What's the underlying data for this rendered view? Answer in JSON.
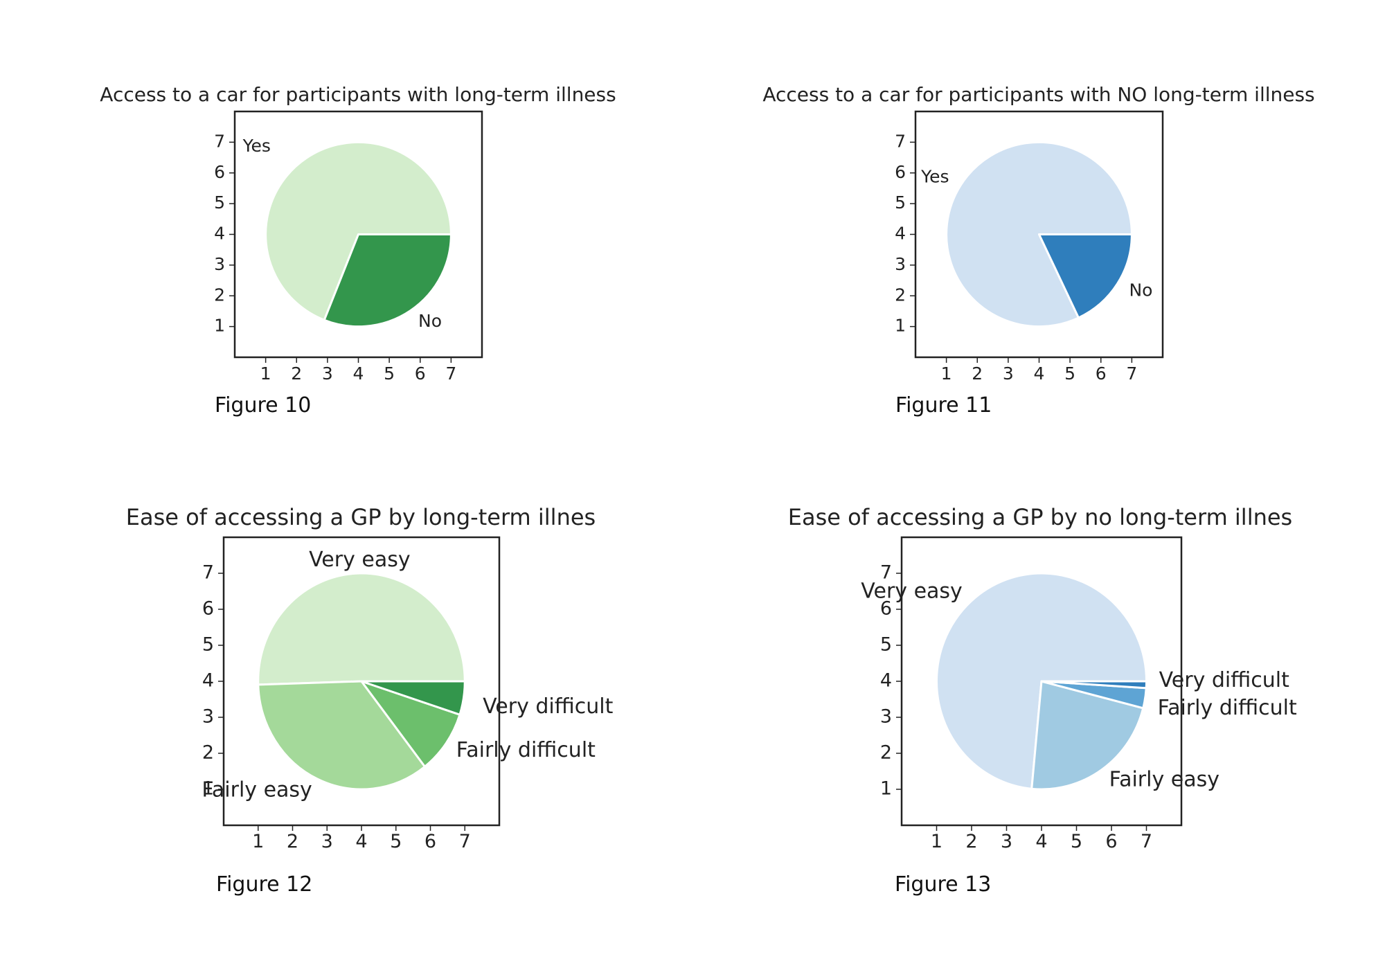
{
  "chart_data": [
    {
      "type": "pie",
      "title": "Access to a car for participants with long-term illness",
      "caption": "Figure 10",
      "ticks": [
        "1",
        "2",
        "3",
        "4",
        "5",
        "6",
        "7"
      ],
      "xlim": [
        0,
        8
      ],
      "ylim": [
        0,
        8
      ],
      "center": [
        4,
        4
      ],
      "radius": 3,
      "start_angle_deg": 0,
      "counterclock": true,
      "slices": [
        {
          "label": "Yes",
          "value": 69,
          "color": "#d3edcc"
        },
        {
          "label": "No",
          "value": 31,
          "color": "#33964c"
        }
      ]
    },
    {
      "type": "pie",
      "title": "Access to a car for participants with NO long-term illness",
      "caption": "Figure 11",
      "ticks": [
        "1",
        "2",
        "3",
        "4",
        "5",
        "6",
        "7"
      ],
      "xlim": [
        0,
        8
      ],
      "ylim": [
        0,
        8
      ],
      "center": [
        4,
        4
      ],
      "radius": 3,
      "start_angle_deg": 0,
      "counterclock": true,
      "slices": [
        {
          "label": "Yes",
          "value": 82,
          "color": "#d0e1f2"
        },
        {
          "label": "No",
          "value": 18,
          "color": "#2f7ebc"
        }
      ]
    },
    {
      "type": "pie",
      "title": "Ease of accessing a GP by long-term illnes",
      "caption": "Figure 12",
      "ticks": [
        "1",
        "2",
        "3",
        "4",
        "5",
        "6",
        "7"
      ],
      "xlim": [
        0,
        8
      ],
      "ylim": [
        0,
        8
      ],
      "center": [
        4,
        4
      ],
      "radius": 3,
      "start_angle_deg": 0,
      "counterclock": true,
      "slices": [
        {
          "label": "Very easy",
          "value": 50.5,
          "color": "#d3edcc"
        },
        {
          "label": "Fairly easy",
          "value": 35,
          "color": "#a4d99a"
        },
        {
          "label": "Fairly difficult",
          "value": 9.5,
          "color": "#6cbf6c"
        },
        {
          "label": "Very difficult",
          "value": 5,
          "color": "#33964c"
        }
      ]
    },
    {
      "type": "pie",
      "title": "Ease of accessing a GP by no long-term illnes",
      "caption": "Figure 13",
      "ticks": [
        "1",
        "2",
        "3",
        "4",
        "5",
        "6",
        "7"
      ],
      "xlim": [
        0,
        8
      ],
      "ylim": [
        0,
        8
      ],
      "center": [
        4,
        4
      ],
      "radius": 3,
      "start_angle_deg": 0,
      "counterclock": true,
      "slices": [
        {
          "label": "Very easy",
          "value": 73.5,
          "color": "#d0e1f2"
        },
        {
          "label": "Fairly easy",
          "value": 22.5,
          "color": "#a0cae2"
        },
        {
          "label": "Fairly difficult",
          "value": 3,
          "color": "#5ea4d4"
        },
        {
          "label": "Very difficult",
          "value": 1,
          "color": "#2f7ebc"
        }
      ]
    }
  ]
}
